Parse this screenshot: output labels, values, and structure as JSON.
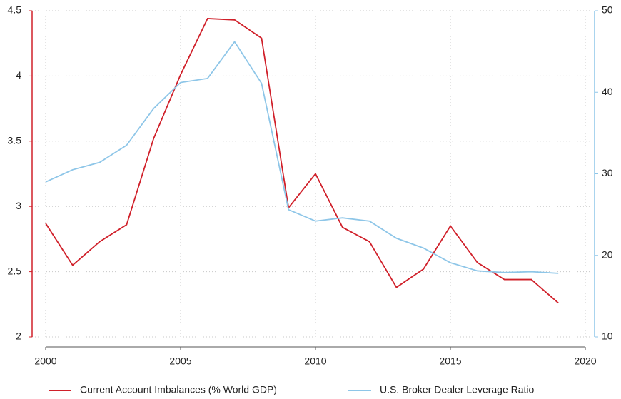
{
  "chart_data": {
    "type": "line",
    "x": [
      2000,
      2001,
      2002,
      2003,
      2004,
      2005,
      2006,
      2007,
      2008,
      2009,
      2010,
      2011,
      2012,
      2013,
      2014,
      2015,
      2016,
      2017,
      2018,
      2019
    ],
    "series": [
      {
        "name": "Current Account Imbalances (% World GDP)",
        "color": "#d0202a",
        "values": [
          2.87,
          2.55,
          2.73,
          2.86,
          3.52,
          4.01,
          4.44,
          4.43,
          4.29,
          2.99,
          3.25,
          2.84,
          2.73,
          2.38,
          2.52,
          2.85,
          2.57,
          2.44,
          2.44,
          2.26
        ]
      },
      {
        "name": "U.S. Broker Dealer Leverage Ratio",
        "color": "#8ec6e8",
        "axis": "y2",
        "values": [
          29.0,
          30.5,
          31.4,
          33.5,
          38.0,
          41.2,
          41.7,
          46.2,
          41.1,
          25.6,
          24.2,
          24.6,
          24.2,
          22.1,
          20.9,
          19.1,
          18.1,
          17.9,
          18.0,
          17.8
        ]
      }
    ],
    "xlim": [
      2000,
      2020
    ],
    "xticks": [
      2000,
      2005,
      2010,
      2015,
      2020
    ],
    "ylim": [
      2,
      4.5
    ],
    "yticks": [
      2,
      2.5,
      3,
      3.5,
      4,
      4.5
    ],
    "y2lim": [
      10,
      50
    ],
    "y2ticks": [
      10,
      20,
      30,
      40,
      50
    ],
    "grid": true,
    "legend": "bottom"
  }
}
